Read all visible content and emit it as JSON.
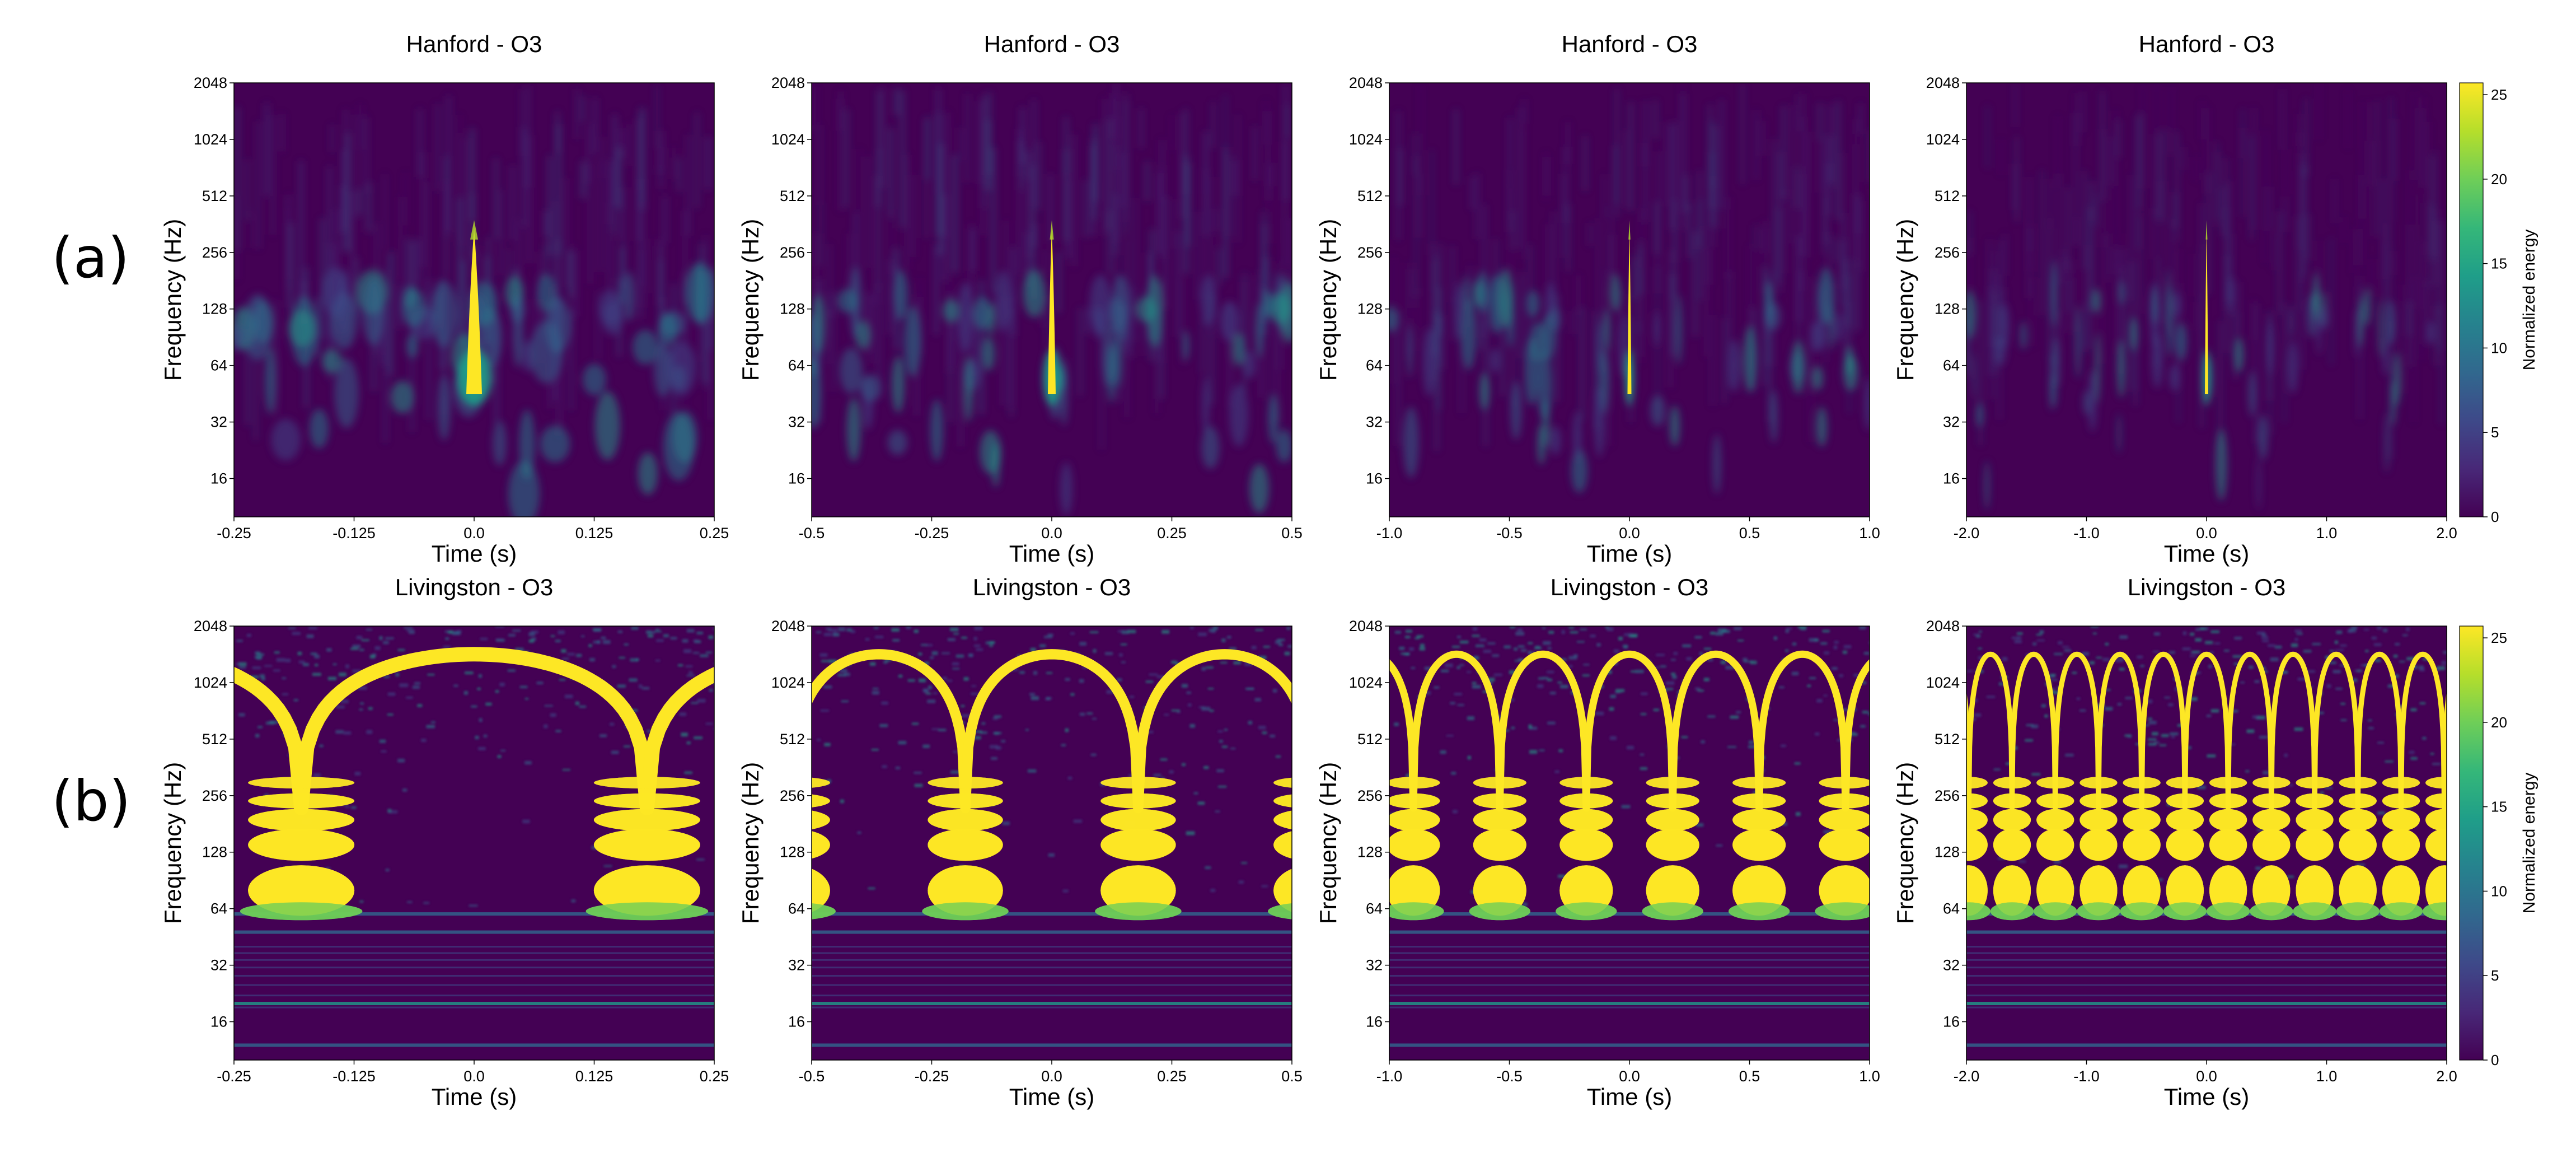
{
  "figure": {
    "row_labels": [
      "(a)",
      "(b)"
    ]
  },
  "colors": {
    "viridis": [
      "#440154",
      "#482878",
      "#3e4989",
      "#31688e",
      "#26828e",
      "#1f9e89",
      "#35b779",
      "#6ece58",
      "#b5de2b",
      "#fde725"
    ],
    "background": "#440154",
    "highlight": "#fde725"
  },
  "chart_data": [
    {
      "type": "heatmap",
      "detector": "hanford",
      "title": "Hanford - O3",
      "xlabel": "Time (s)",
      "ylabel": "Frequency (Hz)",
      "xlim": [
        -0.25,
        0.25
      ],
      "xticks": [
        "-0.25",
        "-0.125",
        "0.0",
        "0.125",
        "0.25"
      ],
      "ylim": [
        10,
        2048
      ],
      "yticks": [
        "16",
        "32",
        "64",
        "128",
        "256",
        "512",
        "1024",
        "2048"
      ],
      "clim": [
        0,
        25
      ],
      "colorbar": false,
      "features": {
        "chirp_time": 0.0,
        "chirp_freq_range": [
          40,
          350
        ]
      }
    },
    {
      "type": "heatmap",
      "detector": "hanford",
      "title": "Hanford - O3",
      "xlabel": "Time (s)",
      "ylabel": "Frequency (Hz)",
      "xlim": [
        -0.5,
        0.5
      ],
      "xticks": [
        "-0.5",
        "-0.25",
        "0.0",
        "0.25",
        "0.5"
      ],
      "ylim": [
        10,
        2048
      ],
      "yticks": [
        "16",
        "32",
        "64",
        "128",
        "256",
        "512",
        "1024",
        "2048"
      ],
      "clim": [
        0,
        25
      ],
      "colorbar": false,
      "features": {
        "chirp_time": 0.0,
        "chirp_freq_range": [
          40,
          350
        ]
      }
    },
    {
      "type": "heatmap",
      "detector": "hanford",
      "title": "Hanford - O3",
      "xlabel": "Time (s)",
      "ylabel": "Frequency (Hz)",
      "xlim": [
        -1.0,
        1.0
      ],
      "xticks": [
        "-1.0",
        "-0.5",
        "0.0",
        "0.5",
        "1.0"
      ],
      "ylim": [
        10,
        2048
      ],
      "yticks": [
        "16",
        "32",
        "64",
        "128",
        "256",
        "512",
        "1024",
        "2048"
      ],
      "clim": [
        0,
        25
      ],
      "colorbar": false,
      "features": {
        "chirp_time": 0.0,
        "chirp_freq_range": [
          40,
          350
        ]
      }
    },
    {
      "type": "heatmap",
      "detector": "hanford",
      "title": "Hanford - O3",
      "xlabel": "Time (s)",
      "ylabel": "Frequency (Hz)",
      "xlim": [
        -2.0,
        2.0
      ],
      "xticks": [
        "-2.0",
        "-1.0",
        "0.0",
        "1.0",
        "2.0"
      ],
      "ylim": [
        10,
        2048
      ],
      "yticks": [
        "16",
        "32",
        "64",
        "128",
        "256",
        "512",
        "1024",
        "2048"
      ],
      "clim": [
        0,
        25
      ],
      "colorbar": true,
      "colorbar_label": "Normalized energy",
      "colorbar_ticks": [
        "0",
        "5",
        "10",
        "15",
        "20",
        "25"
      ],
      "features": {
        "chirp_time": 0.0,
        "chirp_freq_range": [
          40,
          350
        ]
      }
    },
    {
      "type": "heatmap",
      "detector": "livingston",
      "title": "Livingston - O3",
      "xlabel": "Time (s)",
      "ylabel": "Frequency (Hz)",
      "xlim": [
        -0.25,
        0.25
      ],
      "xticks": [
        "-0.25",
        "-0.125",
        "0.0",
        "0.125",
        "0.25"
      ],
      "ylim": [
        10,
        2048
      ],
      "yticks": [
        "16",
        "32",
        "64",
        "128",
        "256",
        "512",
        "1024",
        "2048"
      ],
      "clim": [
        0,
        25
      ],
      "colorbar": false,
      "features": {
        "arch_period": 0.36,
        "arch_peak_freq": 1450,
        "horizontal_lines_hz": [
          60,
          48,
          20,
          12
        ]
      }
    },
    {
      "type": "heatmap",
      "detector": "livingston",
      "title": "Livingston - O3",
      "xlabel": "Time (s)",
      "ylabel": "Frequency (Hz)",
      "xlim": [
        -0.5,
        0.5
      ],
      "xticks": [
        "-0.5",
        "-0.25",
        "0.0",
        "0.25",
        "0.5"
      ],
      "ylim": [
        10,
        2048
      ],
      "yticks": [
        "16",
        "32",
        "64",
        "128",
        "256",
        "512",
        "1024",
        "2048"
      ],
      "clim": [
        0,
        25
      ],
      "colorbar": false,
      "features": {
        "arch_period": 0.36,
        "arch_peak_freq": 1450,
        "horizontal_lines_hz": [
          60,
          48,
          20,
          12
        ]
      }
    },
    {
      "type": "heatmap",
      "detector": "livingston",
      "title": "Livingston - O3",
      "xlabel": "Time (s)",
      "ylabel": "Frequency (Hz)",
      "xlim": [
        -1.0,
        1.0
      ],
      "xticks": [
        "-1.0",
        "-0.5",
        "0.0",
        "0.5",
        "1.0"
      ],
      "ylim": [
        10,
        2048
      ],
      "yticks": [
        "16",
        "32",
        "64",
        "128",
        "256",
        "512",
        "1024",
        "2048"
      ],
      "clim": [
        0,
        25
      ],
      "colorbar": false,
      "features": {
        "arch_period": 0.36,
        "arch_peak_freq": 1450,
        "horizontal_lines_hz": [
          60,
          48,
          20,
          12
        ]
      }
    },
    {
      "type": "heatmap",
      "detector": "livingston",
      "title": "Livingston - O3",
      "xlabel": "Time (s)",
      "ylabel": "Frequency (Hz)",
      "xlim": [
        -2.0,
        2.0
      ],
      "xticks": [
        "-2.0",
        "-1.0",
        "0.0",
        "1.0",
        "2.0"
      ],
      "ylim": [
        10,
        2048
      ],
      "yticks": [
        "16",
        "32",
        "64",
        "128",
        "256",
        "512",
        "1024",
        "2048"
      ],
      "clim": [
        0,
        25
      ],
      "colorbar": true,
      "colorbar_label": "Normalized energy",
      "colorbar_ticks": [
        "0",
        "5",
        "10",
        "15",
        "20",
        "25"
      ],
      "features": {
        "arch_period": 0.36,
        "arch_peak_freq": 1450,
        "horizontal_lines_hz": [
          60,
          48,
          20,
          12
        ]
      }
    }
  ]
}
